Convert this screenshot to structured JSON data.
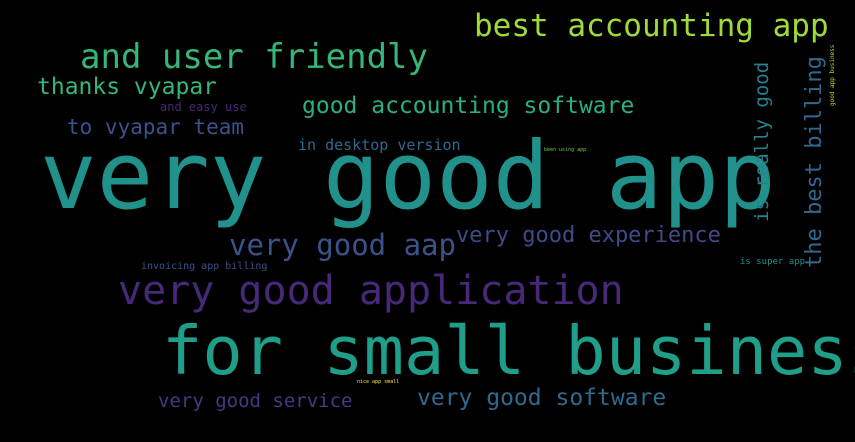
{
  "word_cloud": {
    "background": "#000000",
    "words": [
      {
        "text": "very good app",
        "color": "#21918c"
      },
      {
        "text": "for small business",
        "color": "#1f9e89"
      },
      {
        "text": "very good application",
        "color": "#482878"
      },
      {
        "text": "and user friendly",
        "color": "#35b779"
      },
      {
        "text": "best accounting app",
        "color": "#a0da39"
      },
      {
        "text": "good accounting software",
        "color": "#2ab07f"
      },
      {
        "text": "very good aap",
        "color": "#3b528b"
      },
      {
        "text": "very good experience",
        "color": "#3e4a89"
      },
      {
        "text": "very good software",
        "color": "#31688e"
      },
      {
        "text": "very good service",
        "color": "#443a83"
      },
      {
        "text": "thanks vyapar",
        "color": "#35b779"
      },
      {
        "text": "to vyapar team",
        "color": "#3b528b"
      },
      {
        "text": "in desktop version",
        "color": "#31688e"
      },
      {
        "text": "and easy use",
        "color": "#482878"
      },
      {
        "text": "invoicing app billing",
        "color": "#3b528b"
      },
      {
        "text": "is super app",
        "color": "#21918c"
      },
      {
        "text": "been using app",
        "color": "#6ece58"
      },
      {
        "text": "nice app small",
        "color": "#fde725"
      },
      {
        "text": "the best billing",
        "color": "#31688e"
      },
      {
        "text": "is really good",
        "color": "#26828e"
      },
      {
        "text": "good app business",
        "color": "#b5de2b"
      }
    ]
  }
}
